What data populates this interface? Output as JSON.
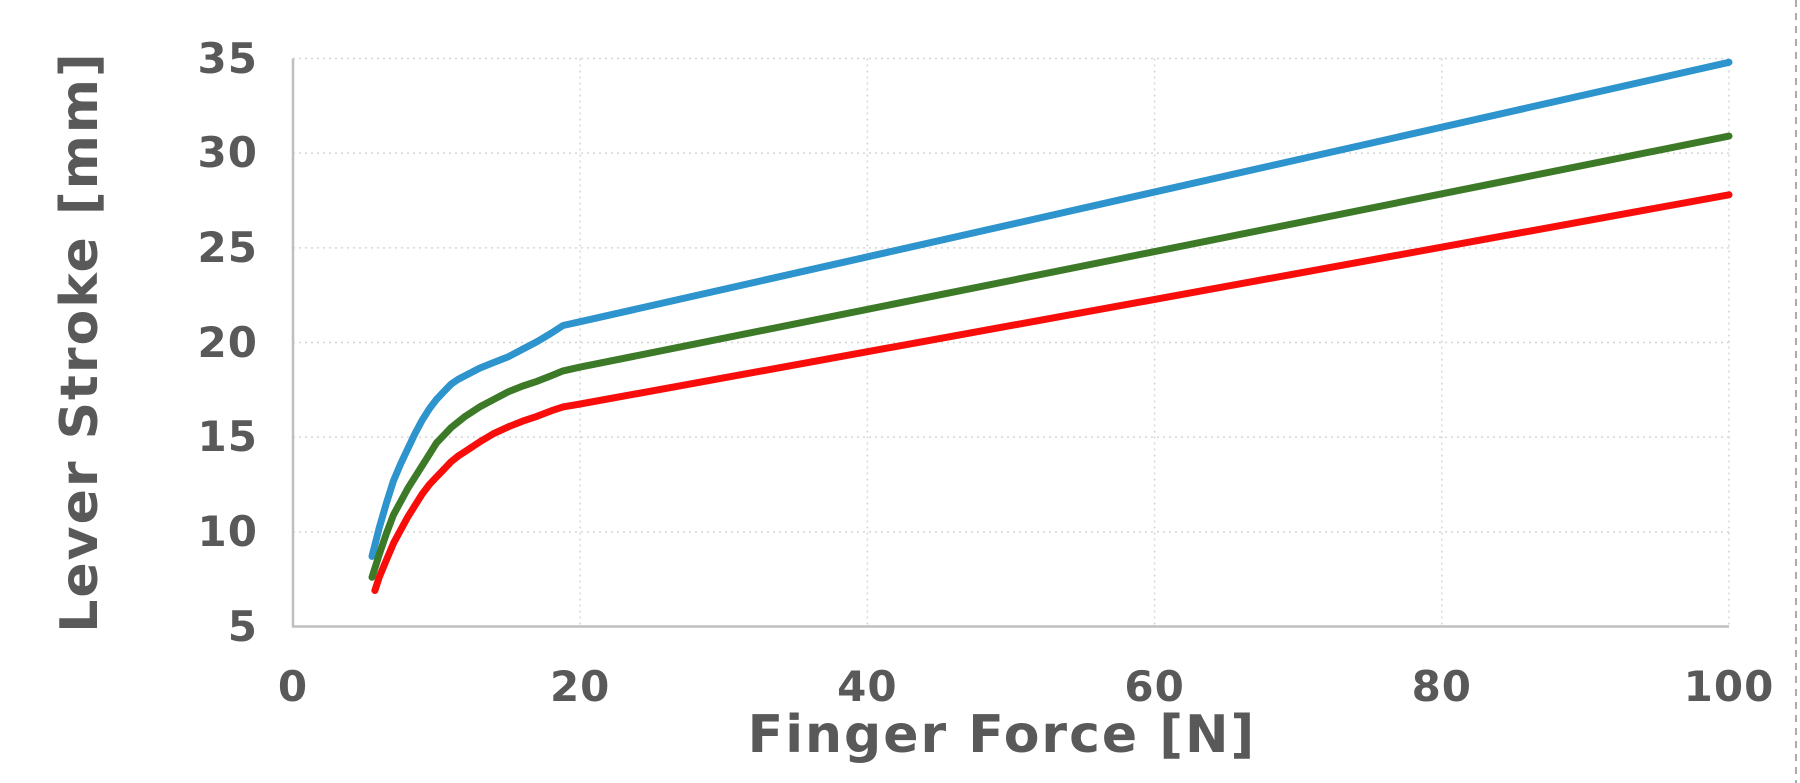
{
  "chart_data": {
    "type": "line",
    "title": "",
    "xlabel": "Finger Force [N]",
    "ylabel": "Lever Stroke [mm]",
    "xlim": [
      0,
      100
    ],
    "ylim": [
      5,
      35
    ],
    "x_ticks": [
      0,
      20,
      40,
      60,
      80,
      100
    ],
    "y_ticks": [
      5,
      10,
      15,
      20,
      25,
      30,
      35
    ],
    "x_tick_labels": [
      "0",
      "20",
      "40",
      "60",
      "80",
      "100"
    ],
    "y_tick_labels": [
      "5",
      "10",
      "15",
      "20",
      "25",
      "30",
      "35"
    ],
    "grid": true,
    "legend": "none",
    "marker": "none",
    "series": [
      {
        "name": "upper-curve-blue",
        "color": "#2D94CD",
        "points": [
          [
            5.5,
            8.7
          ],
          [
            6,
            10.2
          ],
          [
            6.5,
            11.5
          ],
          [
            7,
            12.7
          ],
          [
            7.5,
            13.6
          ],
          [
            8,
            14.4
          ],
          [
            8.5,
            15.2
          ],
          [
            9,
            15.9
          ],
          [
            9.5,
            16.5
          ],
          [
            10,
            17.0
          ],
          [
            10.5,
            17.4
          ],
          [
            11,
            17.8
          ],
          [
            11.5,
            18.05
          ],
          [
            12,
            18.25
          ],
          [
            13,
            18.65
          ],
          [
            14,
            18.95
          ],
          [
            15,
            19.25
          ],
          [
            16,
            19.65
          ],
          [
            17,
            20.05
          ],
          [
            18,
            20.5
          ],
          [
            18.8,
            20.9
          ],
          [
            20,
            21.1
          ],
          [
            100,
            34.8
          ]
        ]
      },
      {
        "name": "middle-curve-green",
        "color": "#3C7A28",
        "points": [
          [
            5.5,
            7.6
          ],
          [
            6,
            8.8
          ],
          [
            6.5,
            9.9
          ],
          [
            7,
            10.9
          ],
          [
            7.5,
            11.6
          ],
          [
            8,
            12.3
          ],
          [
            8.5,
            12.9
          ],
          [
            9,
            13.5
          ],
          [
            9.5,
            14.1
          ],
          [
            10,
            14.7
          ],
          [
            10.5,
            15.1
          ],
          [
            11,
            15.5
          ],
          [
            11.5,
            15.8
          ],
          [
            12,
            16.1
          ],
          [
            13,
            16.6
          ],
          [
            14,
            17.0
          ],
          [
            15,
            17.4
          ],
          [
            16,
            17.7
          ],
          [
            17,
            17.95
          ],
          [
            18,
            18.25
          ],
          [
            18.8,
            18.5
          ],
          [
            20,
            18.7
          ],
          [
            100,
            30.9
          ]
        ]
      },
      {
        "name": "lower-curve-red",
        "color": "#F80D0A",
        "points": [
          [
            5.7,
            6.9
          ],
          [
            6,
            7.6
          ],
          [
            6.5,
            8.5
          ],
          [
            7,
            9.4
          ],
          [
            7.5,
            10.1
          ],
          [
            8,
            10.8
          ],
          [
            8.5,
            11.4
          ],
          [
            9,
            12.0
          ],
          [
            9.5,
            12.5
          ],
          [
            10,
            12.9
          ],
          [
            10.5,
            13.3
          ],
          [
            11,
            13.7
          ],
          [
            11.5,
            14.0
          ],
          [
            12,
            14.25
          ],
          [
            13,
            14.75
          ],
          [
            14,
            15.2
          ],
          [
            15,
            15.55
          ],
          [
            16,
            15.85
          ],
          [
            17,
            16.1
          ],
          [
            18,
            16.4
          ],
          [
            18.8,
            16.6
          ],
          [
            20,
            16.75
          ],
          [
            100,
            27.8
          ]
        ]
      }
    ]
  },
  "style": {
    "background": "#FFFFFF",
    "text_color": "#595959",
    "axis_line_color": "#BFBFBF",
    "gridline_color": "#D6D6D6",
    "edge_dash_color": "#ABABAB"
  }
}
